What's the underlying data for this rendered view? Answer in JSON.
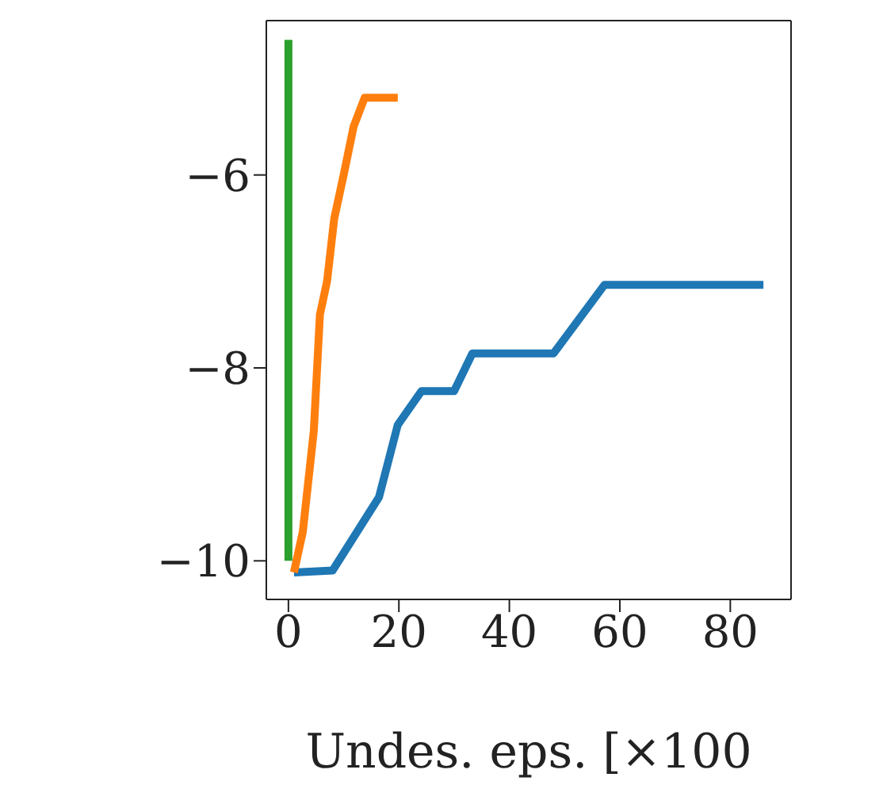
{
  "chart_data": {
    "type": "line",
    "xlabel": "Undes. eps. [×100",
    "xlim": [
      -4,
      91
    ],
    "xticks": [
      0,
      20,
      40,
      60,
      80
    ],
    "ylim": [
      -10.4,
      -4.4
    ],
    "yticks": [
      {
        "value": -10,
        "label": "−10"
      },
      {
        "value": -8,
        "label": "−8"
      },
      {
        "value": -6,
        "label": "−6"
      }
    ],
    "grid": false,
    "legend": false,
    "marker": "none",
    "line_style": "solid",
    "series": [
      {
        "color": "#1f77b4",
        "x": [
          1,
          8,
          16.4,
          19.8,
          24.1,
          30,
          33.3,
          48,
          57.2,
          86
        ],
        "values": [
          -10.12,
          -10.1,
          -9.34,
          -8.59,
          -8.24,
          -8.24,
          -7.85,
          -7.85,
          -7.14,
          -7.14
        ]
      },
      {
        "color": "#ff7f0e",
        "x": [
          1,
          2.6,
          4.6,
          5.7,
          7,
          8.3,
          10,
          11.8,
          13.8,
          19.8
        ],
        "values": [
          -10.12,
          -9.7,
          -8.65,
          -7.45,
          -7.1,
          -6.45,
          -6,
          -5.5,
          -5.2,
          -5.2
        ]
      },
      {
        "color": "#2ca02c",
        "x": [
          0,
          0
        ],
        "values": [
          -10,
          -4.6
        ]
      }
    ]
  }
}
